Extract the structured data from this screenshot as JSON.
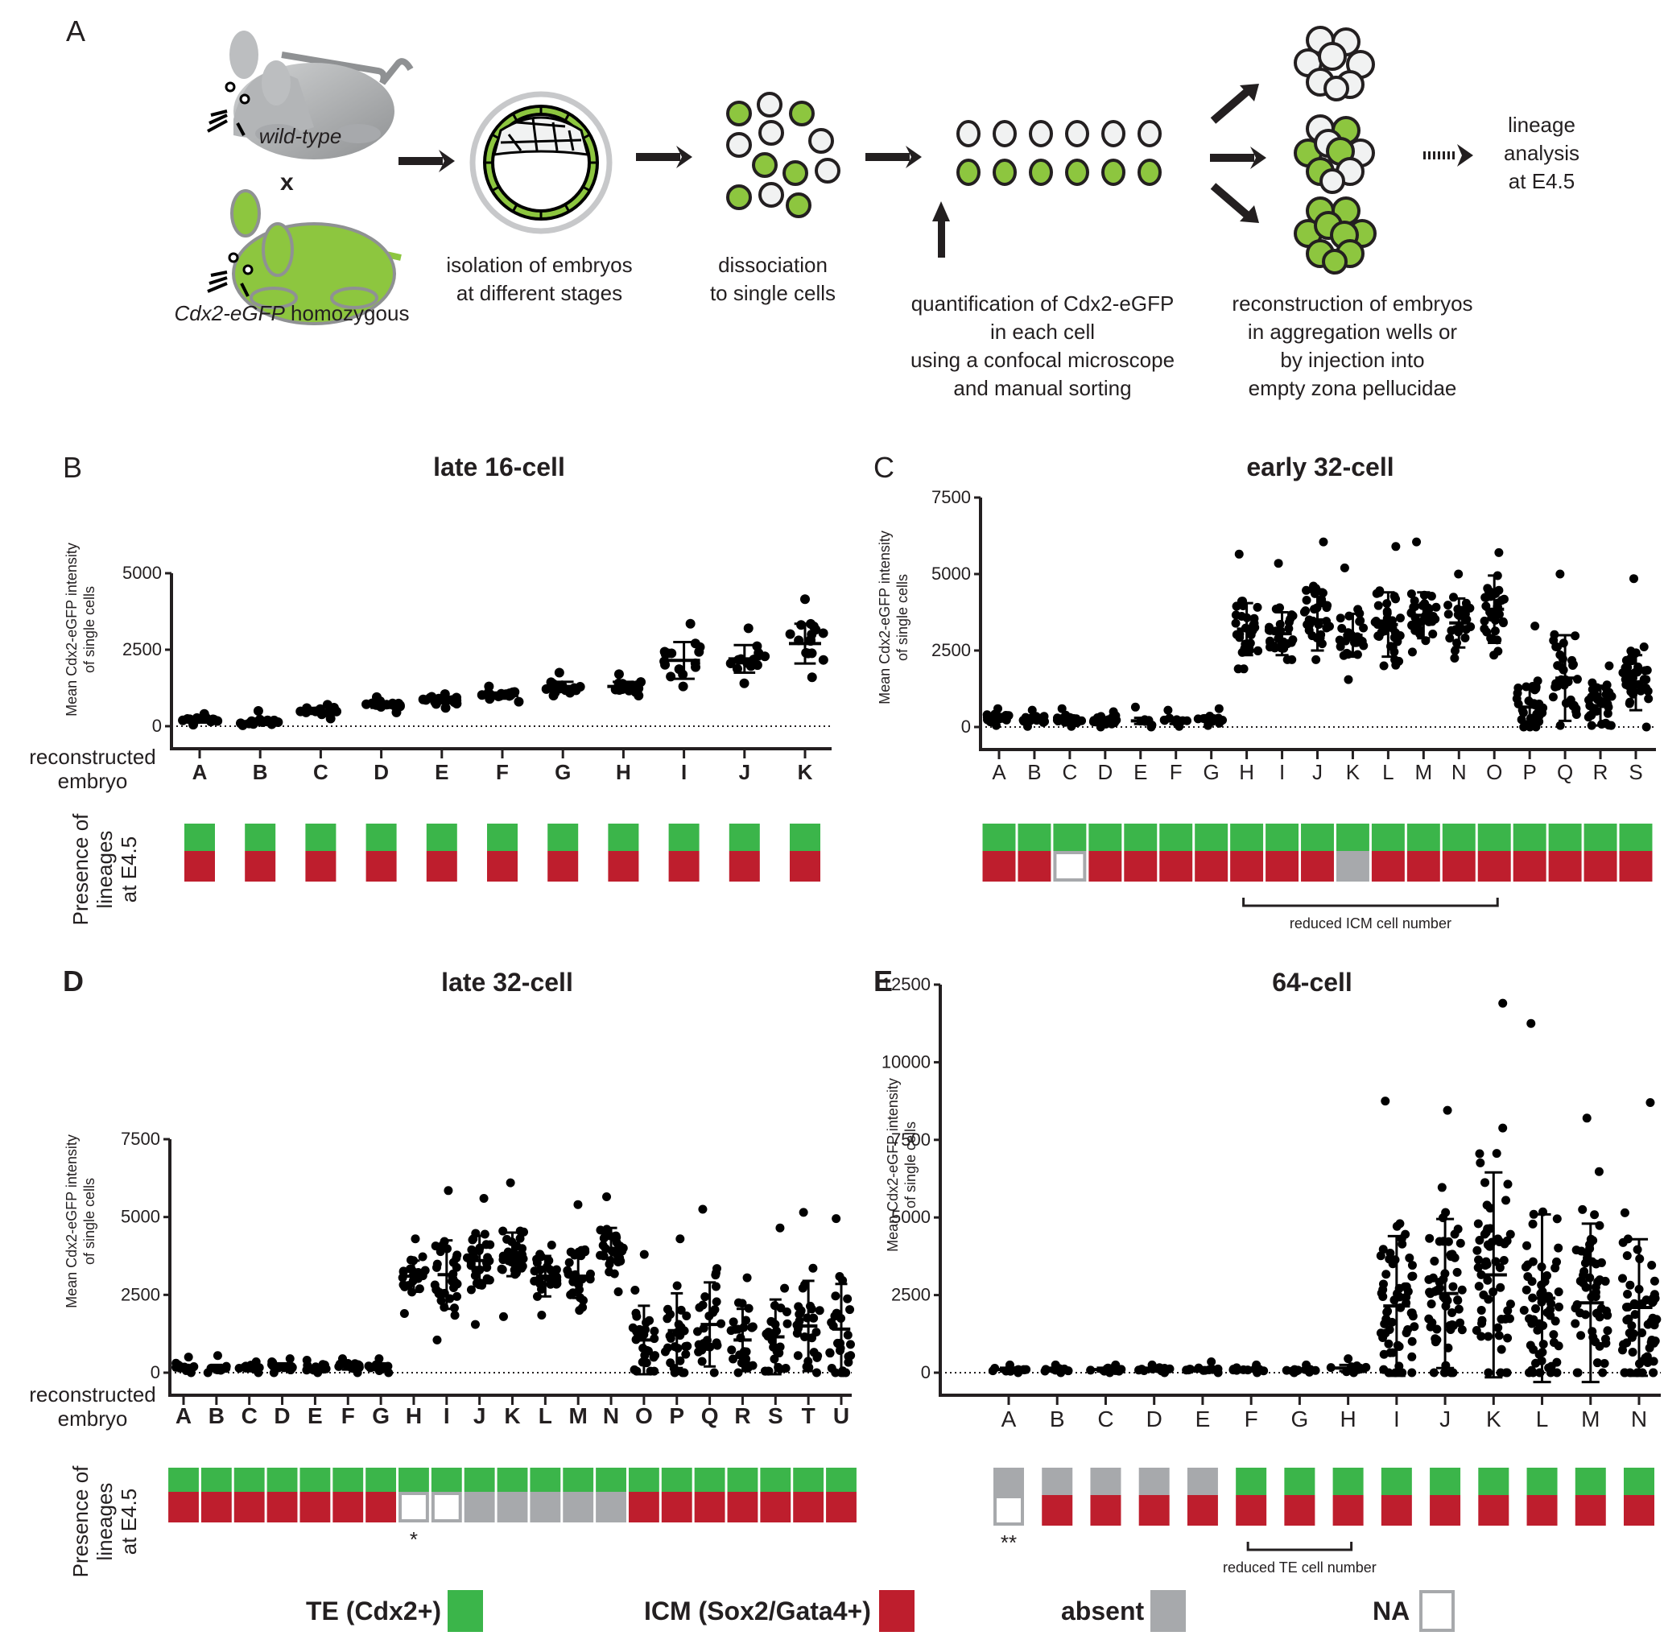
{
  "panel_a": {
    "letter": "A",
    "wild_type_label": "wild-type",
    "cross_symbol": "x",
    "gfp_mouse_label_italic": "Cdx2-eGFP",
    "gfp_mouse_label_rest": " homozygous",
    "step1": [
      "isolation of embryos",
      "at different stages"
    ],
    "step2": [
      "dissociation",
      "to single cells"
    ],
    "step3": [
      "quantification of Cdx2-eGFP",
      "in each cell",
      "using a confocal microscope",
      "and manual sorting"
    ],
    "step4": [
      "reconstruction of embryos",
      "in aggregation wells or",
      "by injection into",
      "empty zona pellucidae"
    ],
    "step5": [
      "lineage",
      "analysis",
      "at E4.5"
    ],
    "colors": {
      "gfp_green": "#8dc63f",
      "mouse_grey": "#a7a9ac",
      "cell_white": "#f1f2f2"
    }
  },
  "shared": {
    "ylabel": [
      "Mean Cdx2-eGFP intensity",
      "of single cells"
    ],
    "xaxis_side_label": [
      "reconstructed",
      "embryo"
    ],
    "lineage_side_label": [
      "Presence of",
      "lineages",
      "at E4.5"
    ]
  },
  "legend": {
    "items": [
      {
        "label": "TE (Cdx2+)",
        "color": "#3bb54a",
        "style": "fill"
      },
      {
        "label": "ICM (Sox2/Gata4+)",
        "color": "#be1e2d",
        "style": "fill"
      },
      {
        "label": "absent",
        "color": "#a7a9ac",
        "style": "fill"
      },
      {
        "label": "NA",
        "color": "#a7a9ac",
        "style": "outline"
      }
    ]
  },
  "chart_data": [
    {
      "panel": "B",
      "type": "scatter",
      "title": "late 16-cell",
      "xlabel": "reconstructed embryo",
      "ylabel": "Mean Cdx2-eGFP intensity of single cells",
      "ylim": [
        0,
        5000
      ],
      "yticks": [
        0,
        2500,
        5000
      ],
      "categories": [
        "A",
        "B",
        "C",
        "D",
        "E",
        "F",
        "G",
        "H",
        "I",
        "J",
        "K"
      ],
      "series": [
        {
          "name": "mean",
          "values": [
            200,
            150,
            500,
            700,
            850,
            1000,
            1300,
            1300,
            2150,
            2200,
            2700
          ]
        },
        {
          "name": "sd",
          "values": [
            80,
            100,
            100,
            100,
            100,
            100,
            150,
            150,
            600,
            450,
            650
          ]
        },
        {
          "name": "min",
          "values": [
            50,
            30,
            250,
            450,
            600,
            800,
            1000,
            1000,
            1300,
            1400,
            1600
          ]
        },
        {
          "name": "max",
          "values": [
            400,
            500,
            700,
            950,
            1050,
            1300,
            1750,
            1700,
            3350,
            3200,
            4150
          ]
        },
        {
          "name": "n",
          "values": [
            16,
            16,
            16,
            16,
            16,
            16,
            16,
            16,
            16,
            16,
            16
          ]
        }
      ],
      "lineage": {
        "TE": [
          "present",
          "present",
          "present",
          "present",
          "present",
          "present",
          "present",
          "present",
          "present",
          "present",
          "present"
        ],
        "ICM": [
          "present",
          "present",
          "present",
          "present",
          "present",
          "present",
          "present",
          "present",
          "present",
          "present",
          "present"
        ]
      },
      "annotations": []
    },
    {
      "panel": "C",
      "type": "scatter",
      "title": "early 32-cell",
      "xlabel": "reconstructed embryo",
      "ylabel": "Mean Cdx2-eGFP intensity of single cells",
      "ylim": [
        0,
        7500
      ],
      "yticks": [
        0,
        2500,
        5000,
        7500
      ],
      "categories": [
        "A",
        "B",
        "C",
        "D",
        "E",
        "F",
        "G",
        "H",
        "I",
        "J",
        "K",
        "L",
        "M",
        "N",
        "O",
        "P",
        "Q",
        "R",
        "S"
      ],
      "series": [
        {
          "name": "mean",
          "values": [
            300,
            280,
            250,
            220,
            200,
            200,
            250,
            3200,
            3050,
            3500,
            3000,
            3350,
            3650,
            3400,
            3850,
            650,
            1600,
            700,
            1450
          ]
        },
        {
          "name": "sd",
          "values": [
            100,
            100,
            100,
            100,
            100,
            100,
            100,
            850,
            700,
            1000,
            700,
            1050,
            750,
            800,
            1100,
            700,
            1400,
            650,
            900
          ]
        },
        {
          "name": "min",
          "values": [
            50,
            20,
            20,
            0,
            0,
            20,
            50,
            1900,
            2200,
            2200,
            1550,
            2000,
            2450,
            2250,
            2350,
            0,
            50,
            50,
            0
          ]
        },
        {
          "name": "max",
          "values": [
            600,
            550,
            600,
            500,
            650,
            550,
            600,
            5650,
            5350,
            6050,
            5200,
            5900,
            6050,
            5000,
            5700,
            3300,
            5000,
            2000,
            4850
          ]
        },
        {
          "name": "n",
          "values": [
            20,
            20,
            20,
            20,
            8,
            10,
            16,
            32,
            32,
            32,
            28,
            36,
            32,
            28,
            32,
            32,
            32,
            32,
            40
          ]
        }
      ],
      "lineage": {
        "TE": [
          "present",
          "present",
          "present",
          "present",
          "present",
          "present",
          "present",
          "present",
          "present",
          "present",
          "present",
          "present",
          "present",
          "present",
          "present",
          "present",
          "present",
          "present",
          "present"
        ],
        "ICM": [
          "present",
          "present",
          "NA",
          "present",
          "present",
          "present",
          "present",
          "present",
          "present",
          "present",
          "absent",
          "present",
          "present",
          "present",
          "present",
          "present",
          "present",
          "present",
          "present"
        ]
      },
      "annotations": [
        {
          "text": "reduced ICM cell number",
          "from": "H",
          "to": "O"
        }
      ]
    },
    {
      "panel": "D",
      "type": "scatter",
      "title": "late 32-cell",
      "xlabel": "reconstructed embryo",
      "ylabel": "Mean Cdx2-eGFP intensity of single cells",
      "ylim": [
        0,
        7500
      ],
      "yticks": [
        0,
        2500,
        5000,
        7500
      ],
      "categories": [
        "A",
        "B",
        "C",
        "D",
        "E",
        "F",
        "G",
        "H",
        "I",
        "J",
        "K",
        "L",
        "M",
        "N",
        "O",
        "P",
        "Q",
        "R",
        "S",
        "T",
        "U"
      ],
      "series": [
        {
          "name": "mean",
          "values": [
            150,
            150,
            150,
            200,
            150,
            200,
            200,
            3100,
            3150,
            3600,
            3800,
            3100,
            3100,
            3950,
            1050,
            1350,
            1550,
            1050,
            1150,
            1500,
            1400
          ]
        },
        {
          "name": "sd",
          "values": [
            100,
            100,
            80,
            100,
            80,
            100,
            100,
            500,
            1100,
            800,
            700,
            650,
            700,
            700,
            1100,
            1200,
            1350,
            1000,
            1200,
            1450,
            1450
          ]
        },
        {
          "name": "min",
          "values": [
            0,
            0,
            0,
            0,
            0,
            0,
            0,
            1900,
            1050,
            1550,
            1800,
            1850,
            2000,
            2600,
            50,
            0,
            0,
            0,
            50,
            0,
            0
          ]
        },
        {
          "name": "max",
          "values": [
            500,
            550,
            350,
            450,
            400,
            450,
            450,
            4300,
            5850,
            5600,
            6100,
            4100,
            5400,
            5650,
            3800,
            4300,
            5250,
            3050,
            4650,
            5150,
            4950
          ]
        },
        {
          "name": "n",
          "values": [
            14,
            8,
            12,
            16,
            12,
            16,
            16,
            24,
            32,
            32,
            32,
            28,
            28,
            32,
            28,
            28,
            28,
            28,
            28,
            30,
            28
          ]
        }
      ],
      "lineage": {
        "TE": [
          "present",
          "present",
          "present",
          "present",
          "present",
          "present",
          "present",
          "present",
          "present",
          "present",
          "present",
          "present",
          "present",
          "present",
          "present",
          "present",
          "present",
          "present",
          "present",
          "present",
          "present"
        ],
        "ICM": [
          "present",
          "present",
          "present",
          "present",
          "present",
          "present",
          "present",
          "NA",
          "NA",
          "absent",
          "absent",
          "absent",
          "absent",
          "absent",
          "present",
          "present",
          "present",
          "present",
          "present",
          "present",
          "present"
        ]
      },
      "annotations": [
        {
          "text": "*",
          "at": "H"
        }
      ]
    },
    {
      "panel": "E",
      "type": "scatter",
      "title": "64-cell",
      "xlabel": "reconstructed embryo",
      "ylabel": "Mean Cdx2-eGFP intensity of single cells",
      "ylim": [
        0,
        12500
      ],
      "yticks": [
        0,
        2500,
        5000,
        7500,
        10000,
        12500
      ],
      "categories": [
        "A",
        "B",
        "C",
        "D",
        "E",
        "F",
        "G",
        "H",
        "I",
        "J",
        "K",
        "L",
        "M",
        "N"
      ],
      "series": [
        {
          "name": "mean",
          "values": [
            100,
            100,
            100,
            100,
            100,
            100,
            80,
            150,
            2150,
            2550,
            3150,
            2400,
            2250,
            2100
          ]
        },
        {
          "name": "sd",
          "values": [
            60,
            60,
            60,
            60,
            60,
            60,
            50,
            100,
            2250,
            2400,
            3300,
            2700,
            2550,
            2200
          ]
        },
        {
          "name": "min",
          "values": [
            0,
            0,
            0,
            0,
            0,
            0,
            0,
            0,
            0,
            0,
            0,
            0,
            0,
            0
          ]
        },
        {
          "name": "max",
          "values": [
            250,
            250,
            250,
            250,
            350,
            250,
            250,
            450,
            8750,
            8450,
            11900,
            11250,
            8200,
            8700
          ]
        },
        {
          "name": "n",
          "values": [
            12,
            12,
            12,
            12,
            12,
            12,
            12,
            12,
            60,
            60,
            60,
            60,
            56,
            60
          ]
        }
      ],
      "lineage": {
        "TE": [
          "absent",
          "absent",
          "absent",
          "absent",
          "absent",
          "present",
          "present",
          "present",
          "present",
          "present",
          "present",
          "present",
          "present",
          "present"
        ],
        "ICM": [
          "NA",
          "present",
          "present",
          "present",
          "present",
          "present",
          "present",
          "present",
          "present",
          "present",
          "present",
          "present",
          "present",
          "present"
        ]
      },
      "annotations": [
        {
          "text": "**",
          "at": "A"
        },
        {
          "text": "reduced TE cell number",
          "from": "F",
          "to": "H"
        }
      ]
    }
  ]
}
